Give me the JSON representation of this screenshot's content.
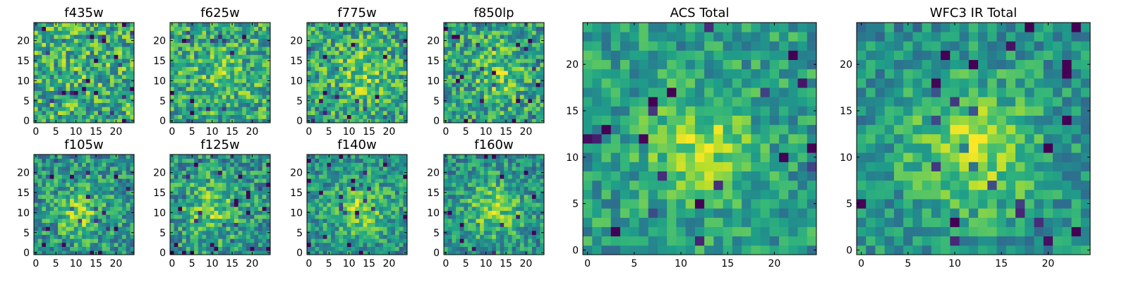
{
  "chart_data": [
    {
      "type": "heatmap",
      "title": "f435w",
      "grid_size": 25,
      "x_ticks": [
        "0",
        "5",
        "10",
        "15",
        "20"
      ],
      "y_ticks": [
        "0",
        "5",
        "10",
        "15",
        "20"
      ],
      "colormap": "viridis",
      "seed": 11,
      "blob": {
        "cx": 12,
        "cy": 11,
        "sigma": 5,
        "amp": 0.05
      },
      "noise": 0.6,
      "base": 0.62
    },
    {
      "type": "heatmap",
      "title": "f625w",
      "grid_size": 25,
      "x_ticks": [
        "0",
        "5",
        "10",
        "15",
        "20"
      ],
      "y_ticks": [
        "0",
        "5",
        "10",
        "15",
        "20"
      ],
      "colormap": "viridis",
      "seed": 22,
      "blob": {
        "cx": 12,
        "cy": 12,
        "sigma": 5,
        "amp": 0.12
      },
      "noise": 0.55,
      "base": 0.6
    },
    {
      "type": "heatmap",
      "title": "f775w",
      "grid_size": 25,
      "x_ticks": [
        "0",
        "5",
        "10",
        "15",
        "20"
      ],
      "y_ticks": [
        "0",
        "5",
        "10",
        "15",
        "20"
      ],
      "colormap": "viridis",
      "seed": 33,
      "blob": {
        "cx": 13,
        "cy": 12,
        "sigma": 5,
        "amp": 0.18
      },
      "noise": 0.55,
      "base": 0.58
    },
    {
      "type": "heatmap",
      "title": "f850lp",
      "grid_size": 25,
      "x_ticks": [
        "0",
        "5",
        "10",
        "15",
        "20"
      ],
      "y_ticks": [
        "0",
        "5",
        "10",
        "15",
        "20"
      ],
      "colormap": "viridis",
      "seed": 44,
      "blob": {
        "cx": 13,
        "cy": 12,
        "sigma": 5,
        "amp": 0.2
      },
      "noise": 0.55,
      "base": 0.56
    },
    {
      "type": "heatmap",
      "title": "f105w",
      "grid_size": 25,
      "x_ticks": [
        "0",
        "5",
        "10",
        "15",
        "20"
      ],
      "y_ticks": [
        "0",
        "5",
        "10",
        "15",
        "20"
      ],
      "colormap": "viridis",
      "seed": 55,
      "blob": {
        "cx": 11,
        "cy": 10,
        "sigma": 4,
        "amp": 0.28
      },
      "noise": 0.5,
      "base": 0.52
    },
    {
      "type": "heatmap",
      "title": "f125w",
      "grid_size": 25,
      "x_ticks": [
        "0",
        "5",
        "10",
        "15",
        "20"
      ],
      "y_ticks": [
        "0",
        "5",
        "10",
        "15",
        "20"
      ],
      "colormap": "viridis",
      "seed": 66,
      "blob": {
        "cx": 10,
        "cy": 11,
        "sigma": 5,
        "amp": 0.25
      },
      "noise": 0.5,
      "base": 0.52
    },
    {
      "type": "heatmap",
      "title": "f140w",
      "grid_size": 25,
      "x_ticks": [
        "0",
        "5",
        "10",
        "15",
        "20"
      ],
      "y_ticks": [
        "0",
        "5",
        "10",
        "15",
        "20"
      ],
      "colormap": "viridis",
      "seed": 77,
      "blob": {
        "cx": 13,
        "cy": 11,
        "sigma": 5,
        "amp": 0.3
      },
      "noise": 0.45,
      "base": 0.5
    },
    {
      "type": "heatmap",
      "title": "f160w",
      "grid_size": 25,
      "x_ticks": [
        "0",
        "5",
        "10",
        "15",
        "20"
      ],
      "y_ticks": [
        "0",
        "5",
        "10",
        "15",
        "20"
      ],
      "colormap": "viridis",
      "seed": 88,
      "blob": {
        "cx": 12,
        "cy": 11,
        "sigma": 5,
        "amp": 0.3
      },
      "noise": 0.45,
      "base": 0.5
    },
    {
      "type": "heatmap",
      "title": "ACS Total",
      "grid_size": 25,
      "x_ticks": [
        "0",
        "5",
        "10",
        "15",
        "20"
      ],
      "y_ticks": [
        "0",
        "5",
        "10",
        "15",
        "20"
      ],
      "colormap": "viridis",
      "seed": 99,
      "blob": {
        "cx": 12,
        "cy": 11,
        "sigma": 4,
        "amp": 0.3
      },
      "noise": 0.4,
      "base": 0.55
    },
    {
      "type": "heatmap",
      "title": "WFC3 IR Total",
      "grid_size": 25,
      "x_ticks": [
        "0",
        "5",
        "10",
        "15",
        "20"
      ],
      "y_ticks": [
        "0",
        "5",
        "10",
        "15",
        "20"
      ],
      "colormap": "viridis",
      "seed": 111,
      "blob": {
        "cx": 12,
        "cy": 11,
        "sigma": 5,
        "amp": 0.35
      },
      "noise": 0.38,
      "base": 0.5
    }
  ]
}
